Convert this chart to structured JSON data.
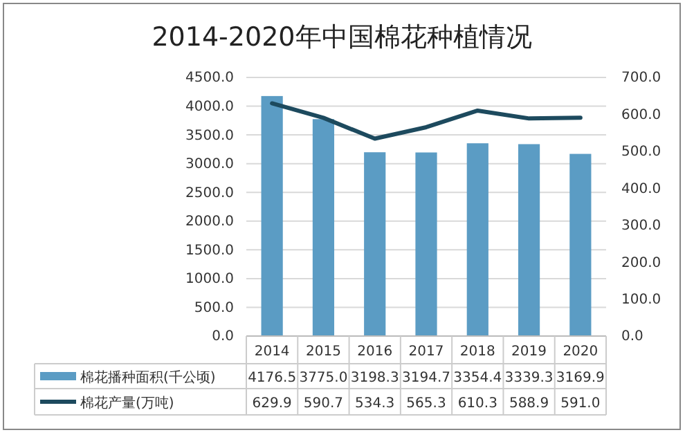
{
  "chart_data": {
    "type": "bar",
    "title": "2014-2020年中国棉花种植情况",
    "categories": [
      "2014",
      "2015",
      "2016",
      "2017",
      "2018",
      "2019",
      "2020"
    ],
    "series": [
      {
        "name": "棉花播种面积(千公顷)",
        "color": "#5b9cc4",
        "values": [
          4176.5,
          3775.0,
          3198.3,
          3194.7,
          3354.4,
          3339.3,
          3169.9
        ],
        "value_labels": [
          "4176.5",
          "3775.0",
          "3198.3",
          "3194.7",
          "3354.4",
          "3339.3",
          "3169.9"
        ]
      },
      {
        "name": "棉花产量(万吨)",
        "type": "line",
        "axis": "y2",
        "color": "#1d4a5e",
        "values": [
          629.9,
          590.7,
          534.3,
          565.3,
          610.3,
          588.9,
          591.0
        ],
        "value_labels": [
          "629.9",
          "590.7",
          "534.3",
          "565.3",
          "610.3",
          "588.9",
          "591.0"
        ]
      }
    ],
    "ylim": [
      0,
      4500
    ],
    "yticks": [
      {
        "value": 0,
        "label": "0.0"
      },
      {
        "value": 500,
        "label": "500.0"
      },
      {
        "value": 1000,
        "label": "1000.0"
      },
      {
        "value": 1500,
        "label": "1500.0"
      },
      {
        "value": 2000,
        "label": "2000.0"
      },
      {
        "value": 2500,
        "label": "2500.0"
      },
      {
        "value": 3000,
        "label": "3000.0"
      },
      {
        "value": 3500,
        "label": "3500.0"
      },
      {
        "value": 4000,
        "label": "4000.0"
      },
      {
        "value": 4500,
        "label": "4500.0"
      }
    ],
    "y2lim": [
      0,
      700
    ],
    "y2ticks": [
      {
        "value": 0,
        "label": "0.0"
      },
      {
        "value": 100,
        "label": "100.0"
      },
      {
        "value": 200,
        "label": "200.0"
      },
      {
        "value": 300,
        "label": "300.0"
      },
      {
        "value": 400,
        "label": "400.0"
      },
      {
        "value": 500,
        "label": "500.0"
      },
      {
        "value": 600,
        "label": "600.0"
      },
      {
        "value": 700,
        "label": "700.0"
      }
    ],
    "grid": "y",
    "legend": "bottom"
  }
}
